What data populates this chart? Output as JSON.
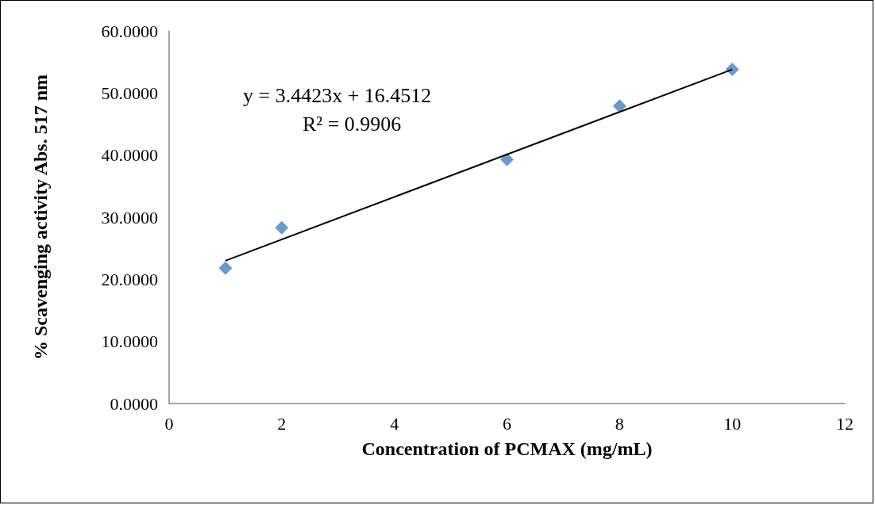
{
  "chart_data": {
    "type": "scatter",
    "xlabel": "Concentration of PCMAX (mg/mL)",
    "ylabel": "% Scavenging activity Abs. 517 nm",
    "x": [
      1,
      2,
      6,
      8,
      10
    ],
    "series": [
      {
        "color": "#4a7ebb",
        "values": [
          21.8,
          28.3,
          39.3,
          47.9,
          53.8
        ],
        "marker": "diamond"
      },
      {
        "type": "line",
        "color": "#000000",
        "x": [
          1,
          10
        ],
        "values": [
          23.0,
          53.8
        ],
        "marker": "none",
        "line_style": "solid"
      }
    ],
    "xlim": [
      0,
      12
    ],
    "xticks": [
      0,
      2,
      4,
      6,
      8,
      10,
      12
    ],
    "ylim": [
      0,
      60
    ],
    "yticks": [
      {
        "value": 0,
        "label": "0.0000"
      },
      {
        "value": 10,
        "label": "10.0000"
      },
      {
        "value": 20,
        "label": "20.0000"
      },
      {
        "value": 30,
        "label": "30.0000"
      },
      {
        "value": 40,
        "label": "40.0000"
      },
      {
        "value": 50,
        "label": "50.0000"
      },
      {
        "value": 60,
        "label": "60.0000"
      }
    ],
    "annotations": [
      "y = 3.4423x + 16.4512",
      "R² = 0.9906"
    ],
    "grid": false
  }
}
